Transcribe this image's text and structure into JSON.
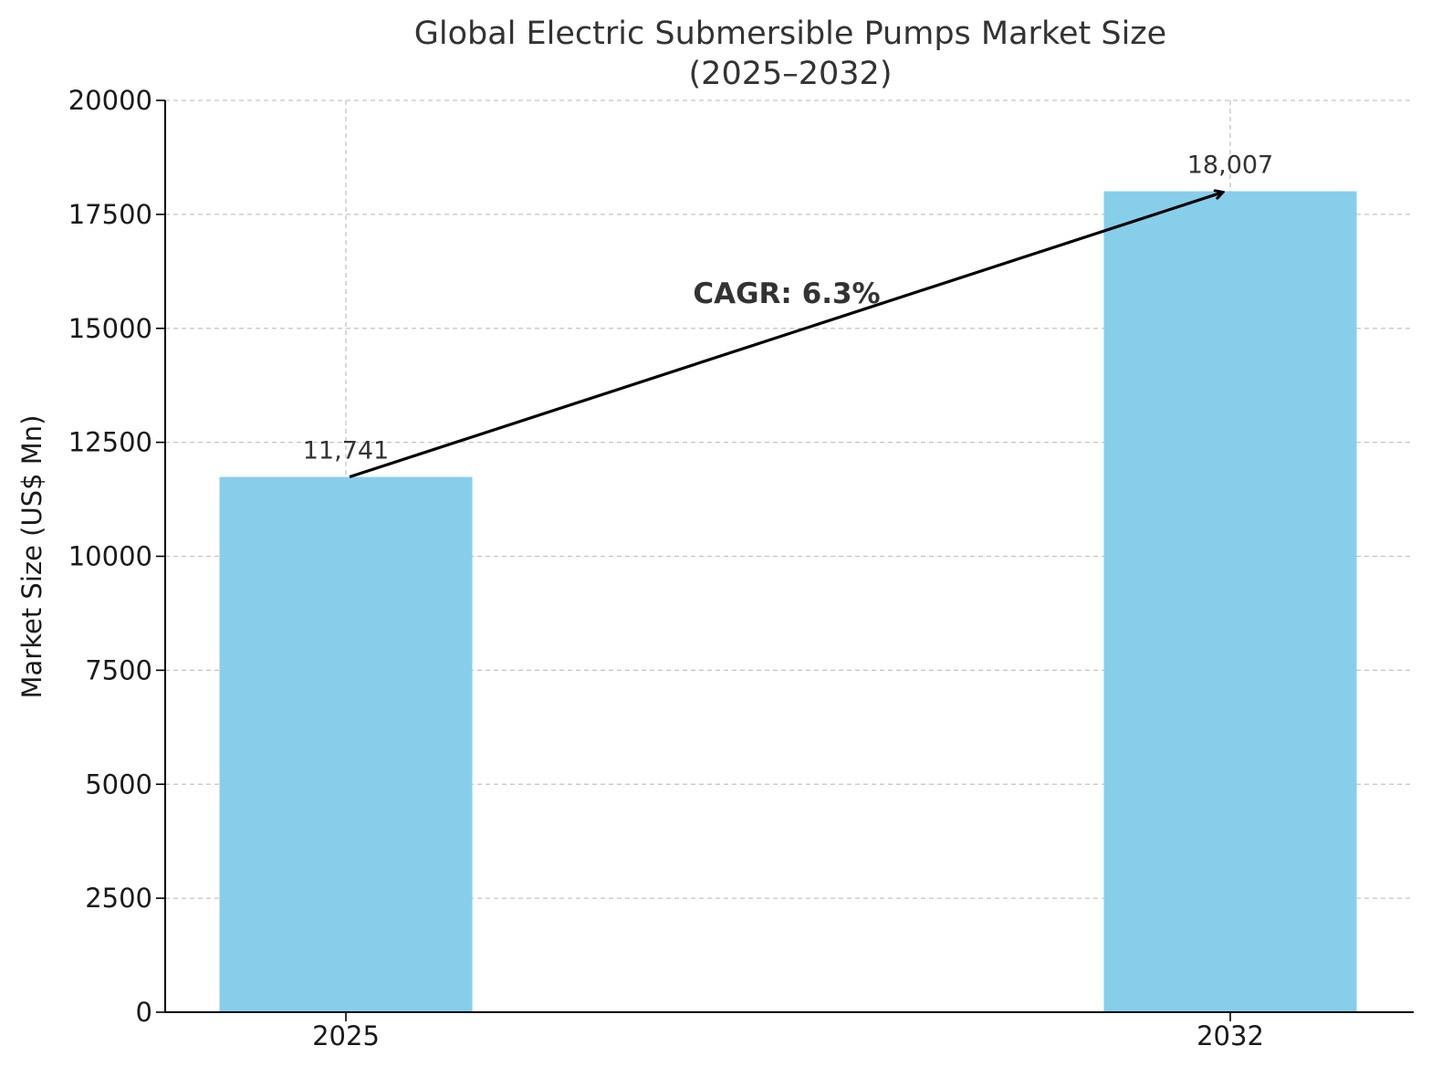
{
  "chart_data": {
    "type": "bar",
    "title": "Global Electric Submersible Pumps Market Size",
    "subtitle": "(2025–2032)",
    "xlabel": "",
    "ylabel": "Market Size (US$ Mn)",
    "categories": [
      "2025",
      "2032"
    ],
    "values": [
      11741,
      18007
    ],
    "value_labels": [
      "11,741",
      "18,007"
    ],
    "ylim": [
      0,
      20000
    ],
    "yticks": [
      0,
      2500,
      5000,
      7500,
      10000,
      12500,
      15000,
      17500,
      20000
    ],
    "grid": true,
    "bar_color": "#87CEEB",
    "annotation": {
      "text": "CAGR: 6.3%",
      "arrow_from": "2025",
      "arrow_to": "2032"
    }
  }
}
